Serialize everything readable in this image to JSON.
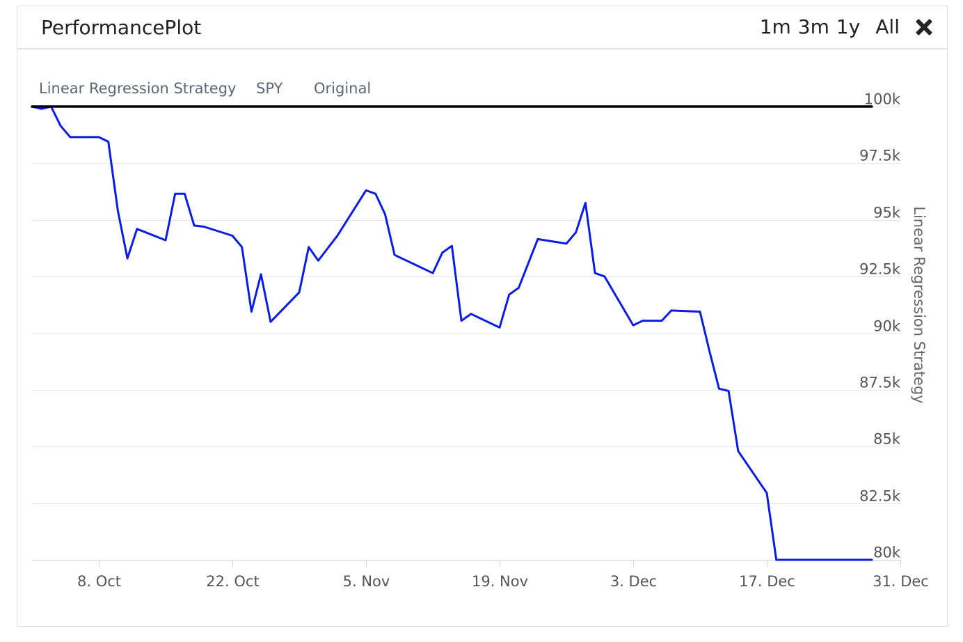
{
  "header": {
    "title": "PerformancePlot",
    "ranges": [
      "1m",
      "3m",
      "1y",
      "All"
    ]
  },
  "colors": {
    "strategy": "#0a1de6",
    "spy": "#000000",
    "grid": "#e2e6ec"
  },
  "chart_data": {
    "type": "line",
    "legend": [
      "Linear Regression Strategy",
      "SPY",
      "Original"
    ],
    "ylabel": "Linear Regression Strategy",
    "ylim": [
      80000,
      100000
    ],
    "y_ticks": [
      100000,
      97500,
      95000,
      92500,
      90000,
      87500,
      85000,
      82500,
      80000
    ],
    "y_tick_labels": [
      "100k",
      "97.5k",
      "95k",
      "92.5k",
      "90k",
      "87.5k",
      "85k",
      "82.5k",
      "80k"
    ],
    "xlim": [
      "2018-10-01",
      "2018-12-31"
    ],
    "x_ticks": [
      "2018-10-08",
      "2018-10-22",
      "2018-11-05",
      "2018-11-19",
      "2018-12-03",
      "2018-12-17",
      "2018-12-31"
    ],
    "x_tick_labels": [
      "8. Oct",
      "22. Oct",
      "5. Nov",
      "19. Nov",
      "3. Dec",
      "17. Dec",
      "31. Dec"
    ],
    "series": [
      {
        "name": "Linear Regression Strategy",
        "x": [
          "2018-10-01",
          "2018-10-02",
          "2018-10-03",
          "2018-10-04",
          "2018-10-05",
          "2018-10-08",
          "2018-10-09",
          "2018-10-10",
          "2018-10-11",
          "2018-10-12",
          "2018-10-15",
          "2018-10-16",
          "2018-10-17",
          "2018-10-18",
          "2018-10-19",
          "2018-10-22",
          "2018-10-23",
          "2018-10-24",
          "2018-10-25",
          "2018-10-26",
          "2018-10-29",
          "2018-10-30",
          "2018-10-31",
          "2018-11-01",
          "2018-11-02",
          "2018-11-05",
          "2018-11-06",
          "2018-11-07",
          "2018-11-08",
          "2018-11-09",
          "2018-11-12",
          "2018-11-13",
          "2018-11-14",
          "2018-11-15",
          "2018-11-16",
          "2018-11-19",
          "2018-11-20",
          "2018-11-21",
          "2018-11-23",
          "2018-11-26",
          "2018-11-27",
          "2018-11-28",
          "2018-11-29",
          "2018-11-30",
          "2018-12-03",
          "2018-12-04",
          "2018-12-06",
          "2018-12-07",
          "2018-12-10",
          "2018-12-11",
          "2018-12-12",
          "2018-12-13",
          "2018-12-14",
          "2018-12-17",
          "2018-12-18",
          "2018-12-19",
          "2018-12-20",
          "2018-12-21",
          "2018-12-24",
          "2018-12-26",
          "2018-12-27",
          "2018-12-28"
        ],
        "values": [
          100000,
          99900,
          100000,
          99150,
          98650,
          98650,
          98450,
          95400,
          93300,
          94600,
          94100,
          96150,
          96150,
          94750,
          94700,
          94300,
          93800,
          90950,
          92600,
          90500,
          91800,
          93800,
          93200,
          93750,
          94300,
          96300,
          96150,
          95250,
          93450,
          93250,
          92650,
          93550,
          93850,
          90550,
          90850,
          90250,
          91700,
          92000,
          94150,
          93950,
          94450,
          95750,
          92650,
          92500,
          90350,
          90550,
          90550,
          91000,
          90950,
          89200,
          87550,
          87450,
          84800,
          82950,
          80000,
          80000,
          80000,
          80000,
          80000,
          80000,
          80000,
          80000
        ]
      },
      {
        "name": "SPY",
        "x": [
          "2018-10-01",
          "2018-12-28"
        ],
        "values": [
          100000,
          100000
        ]
      },
      {
        "name": "Original",
        "x": [],
        "values": []
      }
    ]
  }
}
